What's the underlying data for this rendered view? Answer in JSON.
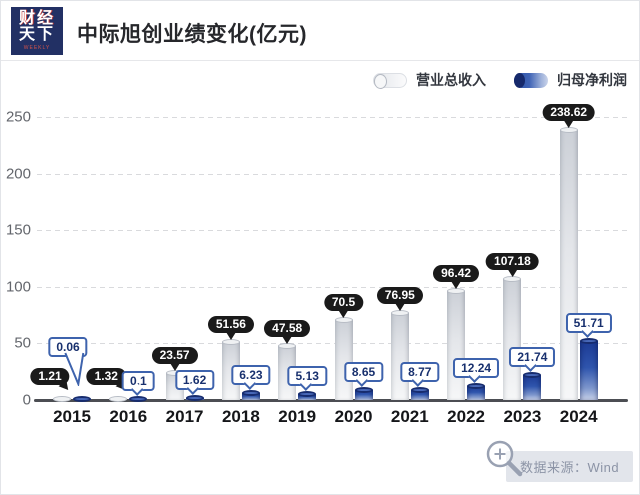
{
  "header": {
    "logo": {
      "line1": "财经",
      "line2": "天下",
      "weekly": "WEEKLY"
    },
    "title": "中际旭创业绩变化(亿元)"
  },
  "chart_data": {
    "type": "bar",
    "title": "中际旭创业绩变化(亿元)",
    "unit": "亿元",
    "categories": [
      "2015",
      "2016",
      "2017",
      "2018",
      "2019",
      "2020",
      "2021",
      "2022",
      "2023",
      "2024"
    ],
    "series": [
      {
        "name": "营业总收入",
        "values": [
          1.21,
          1.32,
          23.57,
          51.56,
          47.58,
          70.5,
          76.95,
          96.42,
          107.18,
          238.62
        ]
      },
      {
        "name": "归母净利润",
        "values": [
          0.06,
          0.1,
          1.62,
          6.23,
          5.13,
          8.65,
          8.77,
          12.24,
          21.74,
          51.71
        ]
      }
    ],
    "xlabel": "",
    "ylabel": "",
    "ylim": [
      0,
      250
    ],
    "yticks": [
      0,
      50,
      100,
      150,
      200,
      250
    ],
    "grid": "dashed-horizontal",
    "legend_position": "top-right"
  },
  "colors": {
    "logo_navy": "#223064",
    "revenue_bar": "#dfe2e7",
    "profit_bar": "#2f55ad",
    "bubble_black": "#1a1a1a",
    "bubble_blue_border": "#3e63ad",
    "bubble_blue_text": "#18306e",
    "axis": "#4c4e53"
  },
  "footer": {
    "source_label": "数据来源：Wind",
    "icon": "magnifier-plus-icon"
  }
}
